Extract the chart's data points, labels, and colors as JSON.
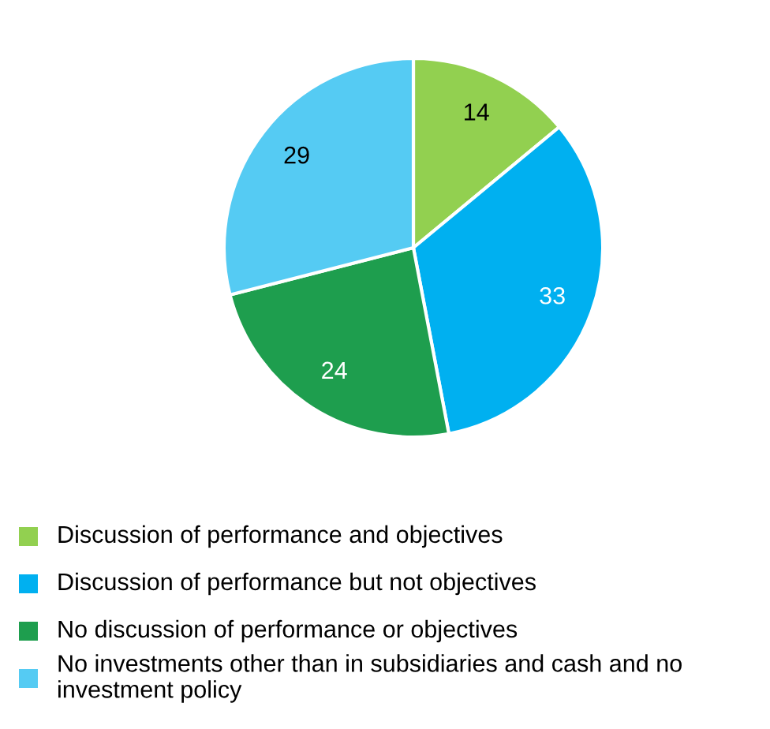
{
  "chart_data": {
    "type": "pie",
    "categories": [
      "Discussion of performance and objectives",
      "Discussion of performance but not objectives",
      "No discussion of performance or objectives",
      "No investments other than in subsidiaries and cash and no investment policy"
    ],
    "values": [
      14,
      33,
      24,
      29
    ],
    "colors": [
      "#92d050",
      "#00b0f0",
      "#1e9e4e",
      "#55cbf3"
    ],
    "data_labels": true,
    "legend": "bottom"
  }
}
